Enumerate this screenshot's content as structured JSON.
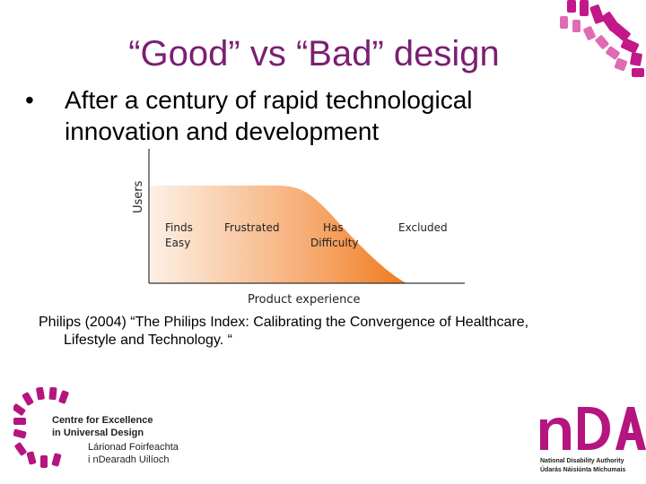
{
  "slide": {
    "title": "“Good” vs “Bad” design",
    "bullet_marker": "•",
    "bullet_text": "After a century of rapid technological innovation and development",
    "citation_line1": "Philips (2004) “The Philips Index: Calibrating the Convergence of Healthcare,",
    "citation_line2": "Lifestyle and Technology. “"
  },
  "chart_data": {
    "type": "area",
    "title": "",
    "xlabel": "Product experience",
    "ylabel": "Users",
    "regions": [
      "Finds Easy",
      "Frustrated",
      "Has Difficulty",
      "Excluded"
    ],
    "region_labels": [
      {
        "lines": [
          "Finds",
          "Easy"
        ]
      },
      {
        "lines": [
          "Frustrated"
        ]
      },
      {
        "lines": [
          "Has",
          "Difficulty"
        ]
      },
      {
        "lines": [
          "Excluded"
        ]
      }
    ],
    "colors": {
      "light": "#fbe0cc",
      "mid": "#f6a86c",
      "dark": "#f07a1e",
      "axis": "#333333"
    }
  },
  "logos": {
    "ceud": {
      "line1": "Centre for Excellence",
      "line2": "in Universal Design",
      "line3": "Lárionad Foirfeachta",
      "line4": "i nDearadh Uilíoch"
    },
    "nda": {
      "mark": "nDA",
      "line1": "National Disability Authority",
      "line2": "Údarás Náisiúnta Míchumais"
    },
    "accent_color": "#b5157f",
    "title_color": "#7b1f73"
  }
}
